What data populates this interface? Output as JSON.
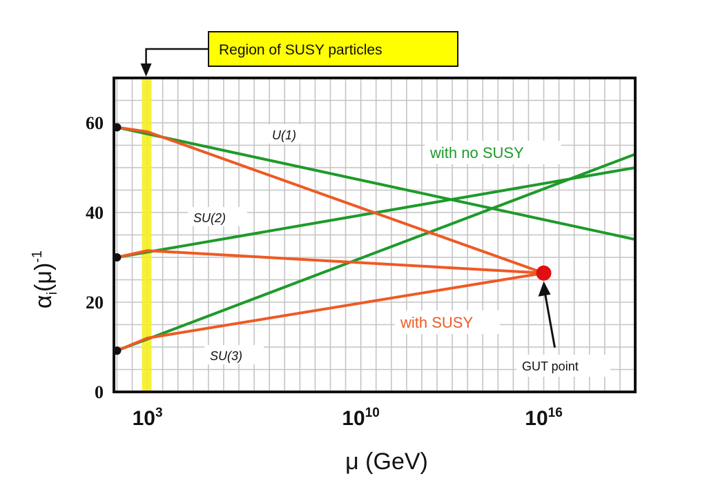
{
  "chart_data": {
    "type": "line",
    "title": "",
    "xlabel": "μ (GeV)",
    "ylabel": "αi(μ)-1",
    "x_scale": "log10",
    "x_ticks": [
      {
        "value": 3,
        "base": "10",
        "exp": "3"
      },
      {
        "value": 10,
        "base": "10",
        "exp": "10"
      },
      {
        "value": 16,
        "base": "10",
        "exp": "16"
      }
    ],
    "y_ticks": [
      "0",
      "20",
      "40",
      "60"
    ],
    "xlim": [
      1.9,
      19.0
    ],
    "ylim": [
      0,
      70
    ],
    "grid": true,
    "series": [
      {
        "group": "no-susy",
        "color": "#1e9a2a",
        "x": [
          2.0,
          19.0
        ],
        "y": [
          59.0,
          34.0
        ]
      },
      {
        "group": "no-susy",
        "color": "#1e9a2a",
        "x": [
          2.0,
          19.0
        ],
        "y": [
          30.0,
          50.0
        ]
      },
      {
        "group": "no-susy",
        "color": "#1e9a2a",
        "x": [
          2.0,
          19.0
        ],
        "y": [
          9.2,
          53.0
        ]
      },
      {
        "group": "susy",
        "color": "#ee5a24",
        "x": [
          2.0,
          3.0,
          16.0
        ],
        "y": [
          59.0,
          58.0,
          26.5
        ]
      },
      {
        "group": "susy",
        "color": "#ee5a24",
        "x": [
          2.0,
          3.0,
          16.0
        ],
        "y": [
          30.0,
          31.5,
          26.5
        ]
      },
      {
        "group": "susy",
        "color": "#ee5a24",
        "x": [
          2.0,
          3.0,
          16.0
        ],
        "y": [
          9.2,
          12.0,
          26.5
        ]
      }
    ],
    "start_points": [
      {
        "x": 2.0,
        "y": 59.0
      },
      {
        "x": 2.0,
        "y": 30.0
      },
      {
        "x": 2.0,
        "y": 9.2
      }
    ],
    "gut_point": {
      "x": 16.0,
      "y": 26.5,
      "label": "GUT point"
    },
    "susy_region": {
      "x": 3.0,
      "label": "Region of SUSY particles"
    },
    "annotations": {
      "u1": "U(1)",
      "su2": "SU(2)",
      "su3": "SU(3)",
      "no_susy": "with no SUSY",
      "with_susy": "with SUSY"
    },
    "colors": {
      "no_susy": "#1e9a2a",
      "susy": "#ee5a24",
      "region_band": "#f5f020",
      "region_box": "#ffff00",
      "gut_point": "#e01010"
    }
  }
}
